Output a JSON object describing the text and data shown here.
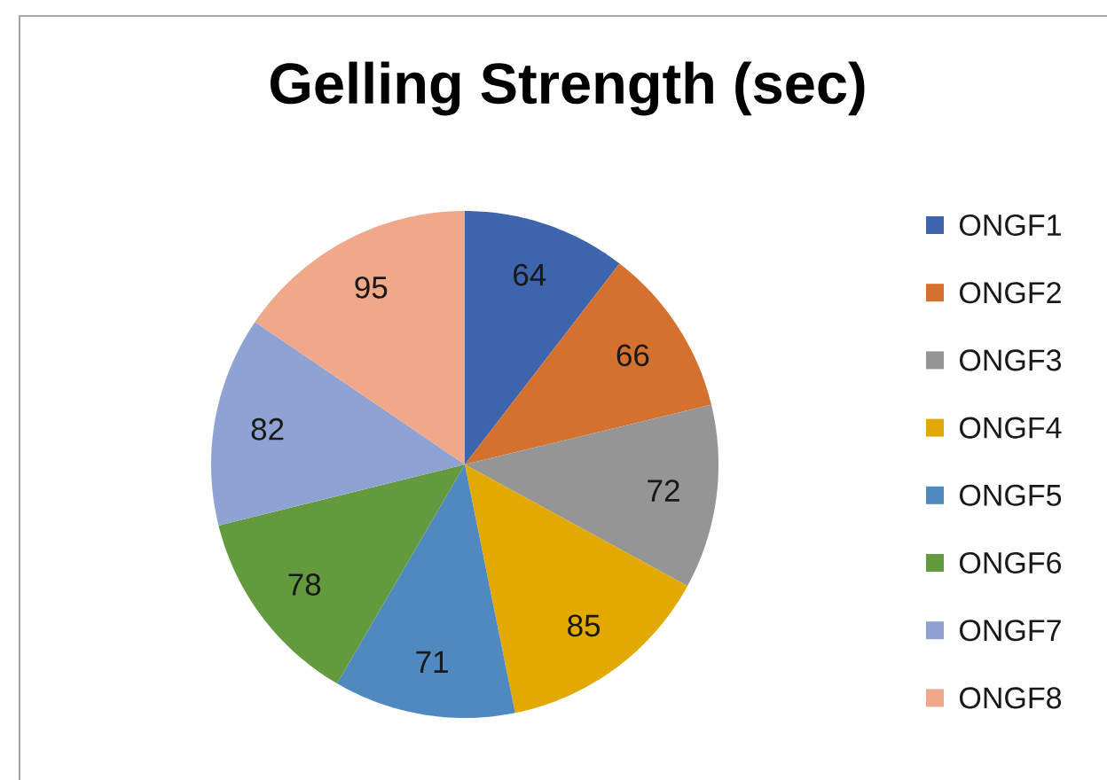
{
  "chart_data": {
    "type": "pie",
    "title": "Gelling Strength (sec)",
    "categories": [
      "ONGF1",
      "ONGF2",
      "ONGF3",
      "ONGF4",
      "ONGF5",
      "ONGF6",
      "ONGF7",
      "ONGF8"
    ],
    "values": [
      64,
      66,
      72,
      85,
      71,
      78,
      82,
      95
    ],
    "colors": [
      "#3d64ad",
      "#d5712e",
      "#959595",
      "#e2aa00",
      "#4f89bf",
      "#639a3d",
      "#8ea3d4",
      "#f0a78a"
    ],
    "data_labels": true,
    "legend": "right"
  }
}
